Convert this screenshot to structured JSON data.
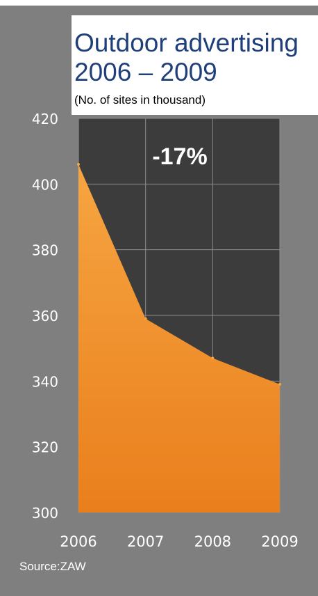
{
  "chart_data": {
    "type": "area",
    "title": "Outdoor advertising",
    "title_line2": "2006 – 2009",
    "subtitle": "(No. of sites in thousand)",
    "categories": [
      "2006",
      "2007",
      "2008",
      "2009"
    ],
    "values": [
      406,
      359,
      347,
      339
    ],
    "ylim": [
      300,
      420
    ],
    "y_ticks": [
      "420",
      "400",
      "380",
      "360",
      "340",
      "320",
      "300"
    ],
    "y_tick_values": [
      420,
      400,
      380,
      360,
      340,
      320,
      300
    ],
    "annotation": "-17%",
    "grid": true,
    "colors": {
      "plot_background": "#3c3c3c",
      "frame_background": "#7f7f7f",
      "area_fill": "#f0912a",
      "gridline": "#8c8c8c",
      "title": "#1f3f7a",
      "axis_text": "#ffffff"
    }
  },
  "source": "Source:ZAW"
}
